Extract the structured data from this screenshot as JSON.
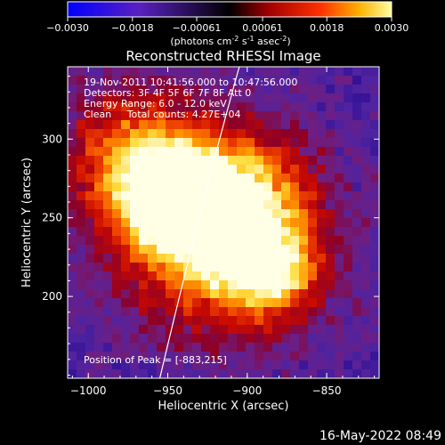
{
  "colorbar": {
    "ticks": [
      "-0.0030",
      "-0.0018",
      "-0.00061",
      "0.00061",
      "0.0018",
      "0.0030"
    ],
    "units_main": "(photons cm",
    "units_exp1": "-2",
    "units_mid": " s",
    "units_exp2": "-1",
    "units_end": " asec",
    "units_exp3": "-2",
    "units_close": ")",
    "range": [
      -0.003,
      0.003
    ]
  },
  "chart_data": {
    "type": "heatmap",
    "title": "Reconstructed RHESSI Image",
    "xlabel": "Heliocentric X (arcsec)",
    "ylabel": "Heliocentric Y (arcsec)",
    "xlim": [
      -1013,
      -817
    ],
    "ylim": [
      148,
      346
    ],
    "xticks": [
      -1000,
      -950,
      -900,
      -850
    ],
    "xtick_labels": [
      "−1000",
      "−950",
      "−900",
      "−850"
    ],
    "yticks": [
      200,
      250,
      300
    ],
    "ytick_labels": [
      "200",
      "250",
      "300"
    ],
    "sources": [
      {
        "x": -945,
        "y": 262,
        "intensity": 0.0028
      },
      {
        "x": -887,
        "y": 217,
        "intensity": 0.003
      }
    ],
    "peak": [
      -883,
      215
    ],
    "limb_curve_points": [
      [
        -955,
        148
      ],
      [
        -930,
        255
      ],
      [
        -905,
        346
      ]
    ],
    "annotations": [
      "19-Nov-2011 10:41:56.000 to 10:47:56.000",
      "Detectors: 3F 4F 5F 6F 7F 8F Att 0",
      "Energy Range: 6.0 - 12.0 keV",
      "Clean     Total counts: 4.27E+04",
      "Position of Peak = [-883,215]"
    ],
    "colorscale": [
      "#0000ff",
      "#6a1fb0",
      "#000000",
      "#b00000",
      "#ff3000",
      "#ffa000",
      "#ffff60",
      "#ffffff"
    ]
  },
  "footer": {
    "timestamp": "16-May-2022 08:49"
  }
}
